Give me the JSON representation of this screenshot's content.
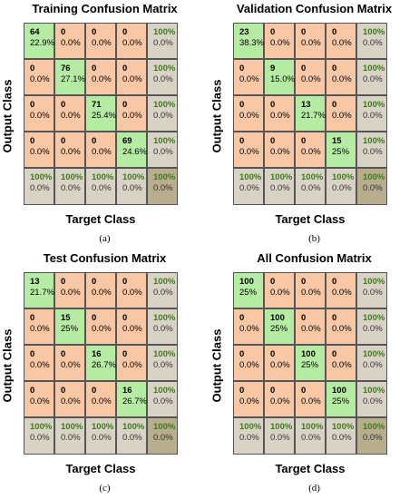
{
  "chart_data": [
    {
      "type": "heatmap",
      "title": "Training Confusion Matrix",
      "xlabel": "Target Class",
      "ylabel": "Output Class",
      "sublabel": "(a)",
      "counts": [
        [
          64,
          0,
          0,
          0
        ],
        [
          0,
          76,
          0,
          0
        ],
        [
          0,
          0,
          71,
          0
        ],
        [
          0,
          0,
          0,
          69
        ]
      ],
      "cell_percent": [
        [
          "22.9%",
          "0.0%",
          "0.0%",
          "0.0%"
        ],
        [
          "0.0%",
          "27.1%",
          "0.0%",
          "0.0%"
        ],
        [
          "0.0%",
          "0.0%",
          "25.4%",
          "0.0%"
        ],
        [
          "0.0%",
          "0.0%",
          "0.0%",
          "24.6%"
        ]
      ],
      "row_summary": [
        [
          "100%",
          "0.0%"
        ],
        [
          "100%",
          "0.0%"
        ],
        [
          "100%",
          "0.0%"
        ],
        [
          "100%",
          "0.0%"
        ]
      ],
      "col_summary": [
        [
          "100%",
          "0.0%"
        ],
        [
          "100%",
          "0.0%"
        ],
        [
          "100%",
          "0.0%"
        ],
        [
          "100%",
          "0.0%"
        ]
      ],
      "overall": [
        "100%",
        "0.0%"
      ]
    },
    {
      "type": "heatmap",
      "title": "Validation Confusion Matrix",
      "xlabel": "Target Class",
      "ylabel": "Output Class",
      "sublabel": "(b)",
      "counts": [
        [
          23,
          0,
          0,
          0
        ],
        [
          0,
          9,
          0,
          0
        ],
        [
          0,
          0,
          13,
          0
        ],
        [
          0,
          0,
          0,
          15
        ]
      ],
      "cell_percent": [
        [
          "38.3%",
          "0.0%",
          "0.0%",
          "0.0%"
        ],
        [
          "0.0%",
          "15.0%",
          "0.0%",
          "0.0%"
        ],
        [
          "0.0%",
          "0.0%",
          "21.7%",
          "0.0%"
        ],
        [
          "0.0%",
          "0.0%",
          "0.0%",
          "25%"
        ]
      ],
      "row_summary": [
        [
          "100%",
          "0.0%"
        ],
        [
          "100%",
          "0.0%"
        ],
        [
          "100%",
          "0.0%"
        ],
        [
          "100%",
          "0.0%"
        ]
      ],
      "col_summary": [
        [
          "100%",
          "0.0%"
        ],
        [
          "100%",
          "0.0%"
        ],
        [
          "100%",
          "0.0%"
        ],
        [
          "100%",
          "0.0%"
        ]
      ],
      "overall": [
        "100%",
        "0.0%"
      ]
    },
    {
      "type": "heatmap",
      "title": "Test Confusion Matrix",
      "xlabel": "Target Class",
      "ylabel": "Output Class",
      "sublabel": "(c)",
      "counts": [
        [
          13,
          0,
          0,
          0
        ],
        [
          0,
          15,
          0,
          0
        ],
        [
          0,
          0,
          16,
          0
        ],
        [
          0,
          0,
          0,
          16
        ]
      ],
      "cell_percent": [
        [
          "21.7%",
          "0.0%",
          "0.0%",
          "0.0%"
        ],
        [
          "0.0%",
          "25%",
          "0.0%",
          "0.0%"
        ],
        [
          "0.0%",
          "0.0%",
          "26.7%",
          "0.0%"
        ],
        [
          "0.0%",
          "0.0%",
          "0.0%",
          "26.7%"
        ]
      ],
      "row_summary": [
        [
          "100%",
          "0.0%"
        ],
        [
          "100%",
          "0.0%"
        ],
        [
          "100%",
          "0.0%"
        ],
        [
          "100%",
          "0.0%"
        ]
      ],
      "col_summary": [
        [
          "100%",
          "0.0%"
        ],
        [
          "100%",
          "0.0%"
        ],
        [
          "100%",
          "0.0%"
        ],
        [
          "100%",
          "0.0%"
        ]
      ],
      "overall": [
        "100%",
        "0.0%"
      ]
    },
    {
      "type": "heatmap",
      "title": "All Confusion Matrix",
      "xlabel": "Target Class",
      "ylabel": "Output Class",
      "sublabel": "(d)",
      "counts": [
        [
          100,
          0,
          0,
          0
        ],
        [
          0,
          100,
          0,
          0
        ],
        [
          0,
          0,
          100,
          0
        ],
        [
          0,
          0,
          0,
          100
        ]
      ],
      "cell_percent": [
        [
          "25%",
          "0.0%",
          "0.0%",
          "0.0%"
        ],
        [
          "0.0%",
          "25%",
          "0.0%",
          "0.0%"
        ],
        [
          "0.0%",
          "0.0%",
          "25%",
          "0.0%"
        ],
        [
          "0.0%",
          "0.0%",
          "0.0%",
          "25%"
        ]
      ],
      "row_summary": [
        [
          "100%",
          "0.0%"
        ],
        [
          "100%",
          "0.0%"
        ],
        [
          "100%",
          "0.0%"
        ],
        [
          "100%",
          "0.0%"
        ]
      ],
      "col_summary": [
        [
          "100%",
          "0.0%"
        ],
        [
          "100%",
          "0.0%"
        ],
        [
          "100%",
          "0.0%"
        ],
        [
          "100%",
          "0.0%"
        ]
      ],
      "overall": [
        "100%",
        "0.0%"
      ]
    }
  ],
  "colors": {
    "diagonal": "#b6eba4",
    "off_diagonal": "#f8c7a6",
    "summary": "#d9d3c6",
    "overall": "#b8ad8c",
    "percent_correct_text": "#3c7a1c"
  }
}
